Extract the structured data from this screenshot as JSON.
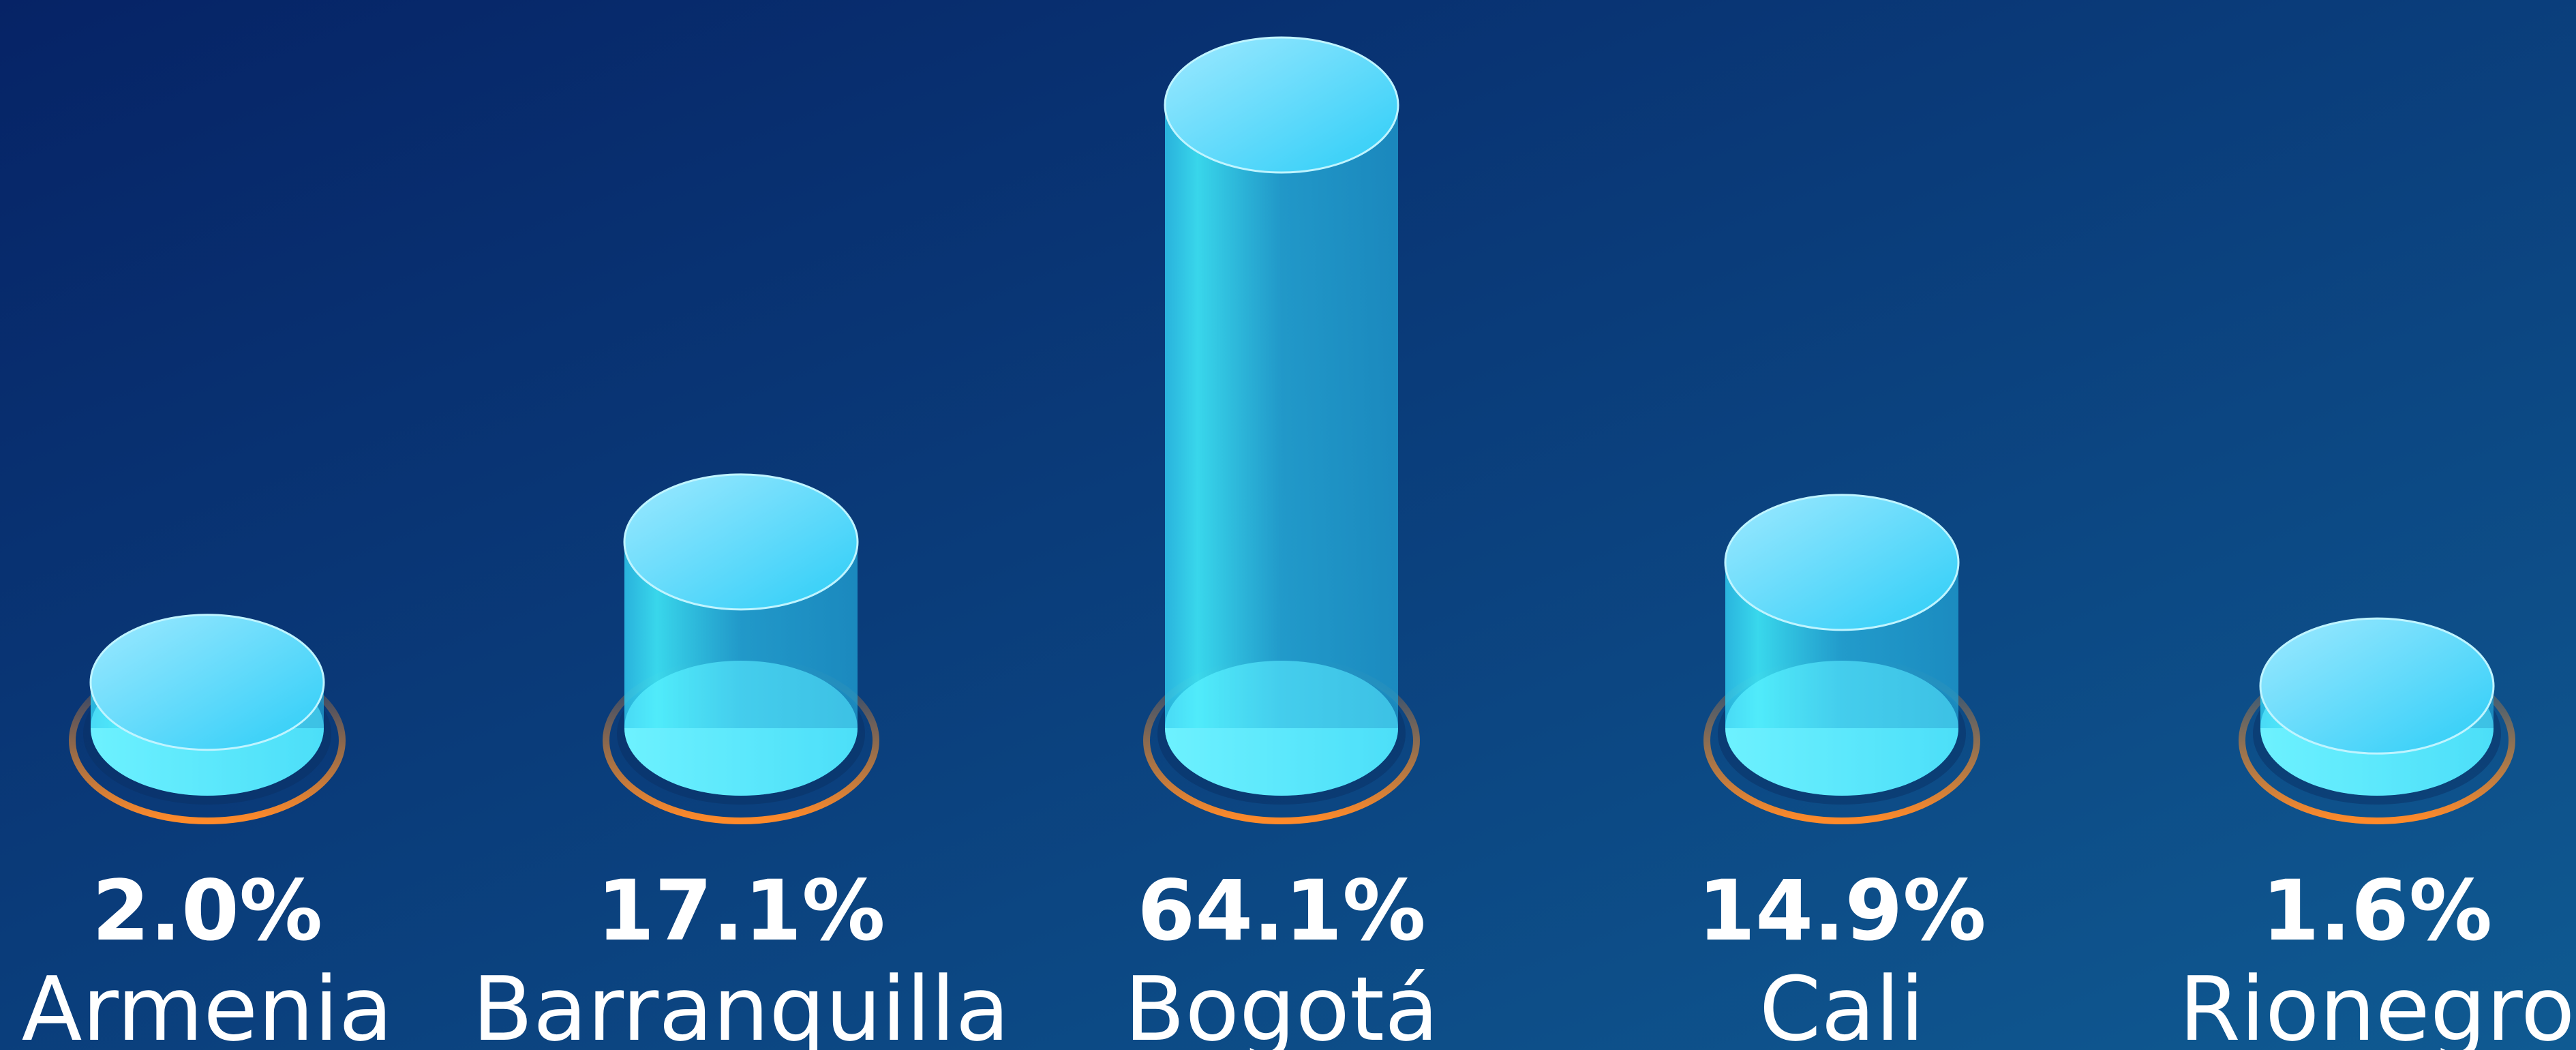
{
  "chart_data": {
    "type": "cylinder",
    "categories": [
      "Armenia",
      "Barranquilla",
      "Bogotá",
      "Cali",
      "Rionegro"
    ],
    "values": [
      2.0,
      17.1,
      64.1,
      14.9,
      1.6
    ],
    "value_labels": [
      "2.0%",
      "17.1%",
      "64.1%",
      "14.9%",
      "1.6%"
    ],
    "color": "#3fd3f5"
  }
}
